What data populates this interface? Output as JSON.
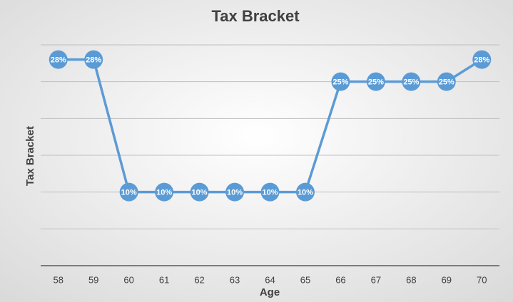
{
  "chart_data": {
    "type": "line",
    "title": "Tax Bracket",
    "y_label": "Tax Bracket",
    "x_label": "Age",
    "categories": [
      "58",
      "59",
      "60",
      "61",
      "62",
      "63",
      "64",
      "65",
      "66",
      "67",
      "68",
      "69",
      "70"
    ],
    "series": [
      {
        "name": "Tax Bracket",
        "color": "#5b9bd5",
        "values": [
          28,
          28,
          10,
          10,
          10,
          10,
          10,
          10,
          25,
          25,
          25,
          25,
          28
        ],
        "value_labels": [
          "28%",
          "28%",
          "10%",
          "10%",
          "10%",
          "10%",
          "10%",
          "10%",
          "25%",
          "25%",
          "25%",
          "25%",
          "28%"
        ]
      }
    ],
    "ylim": [
      0,
      30
    ],
    "yticks": [
      0,
      5,
      10,
      15,
      20,
      25,
      30
    ],
    "grid": true
  }
}
